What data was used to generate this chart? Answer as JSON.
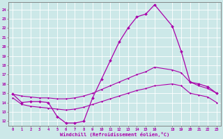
{
  "xlabel": "Windchill (Refroidissement éolien,°C)",
  "bg_color": "#cce8e8",
  "line_color": "#aa00aa",
  "grid_color": "#ffffff",
  "xlim": [
    -0.5,
    23.5
  ],
  "ylim": [
    11.5,
    24.8
  ],
  "xticks": [
    0,
    1,
    2,
    3,
    4,
    5,
    6,
    7,
    8,
    9,
    10,
    11,
    12,
    13,
    14,
    15,
    16,
    18,
    19,
    20,
    21,
    22,
    23
  ],
  "yticks": [
    12,
    13,
    14,
    15,
    16,
    17,
    18,
    19,
    20,
    21,
    22,
    23,
    24
  ],
  "line_main_x": [
    0,
    1,
    2,
    3,
    4,
    5,
    6,
    7,
    8,
    9,
    10,
    11,
    12,
    13,
    14,
    15,
    16,
    18,
    19,
    20,
    21,
    22,
    23
  ],
  "line_main_y": [
    14.9,
    14.0,
    14.1,
    14.1,
    14.0,
    12.5,
    11.8,
    11.8,
    12.0,
    14.5,
    16.5,
    18.5,
    20.5,
    22.0,
    23.2,
    23.5,
    24.5,
    22.2,
    19.5,
    16.2,
    16.0,
    15.7,
    15.0
  ],
  "curve_upper_x": [
    0,
    1,
    2,
    3,
    4,
    5,
    6,
    7,
    8,
    9,
    10,
    11,
    12,
    13,
    14,
    15,
    16,
    18,
    19,
    20,
    21,
    22,
    23
  ],
  "curve_upper_y": [
    14.9,
    14.7,
    14.6,
    14.5,
    14.5,
    14.4,
    14.4,
    14.5,
    14.7,
    15.0,
    15.4,
    15.8,
    16.2,
    16.6,
    17.0,
    17.3,
    17.8,
    17.5,
    17.2,
    16.2,
    15.8,
    15.5,
    15.0
  ],
  "curve_lower_x": [
    0,
    1,
    2,
    3,
    4,
    5,
    6,
    7,
    8,
    9,
    10,
    11,
    12,
    13,
    14,
    15,
    16,
    18,
    19,
    20,
    21,
    22,
    23
  ],
  "curve_lower_y": [
    14.5,
    13.8,
    13.6,
    13.5,
    13.4,
    13.3,
    13.2,
    13.3,
    13.5,
    13.8,
    14.1,
    14.4,
    14.7,
    15.0,
    15.3,
    15.5,
    15.8,
    16.0,
    15.8,
    15.0,
    14.8,
    14.6,
    14.0
  ]
}
